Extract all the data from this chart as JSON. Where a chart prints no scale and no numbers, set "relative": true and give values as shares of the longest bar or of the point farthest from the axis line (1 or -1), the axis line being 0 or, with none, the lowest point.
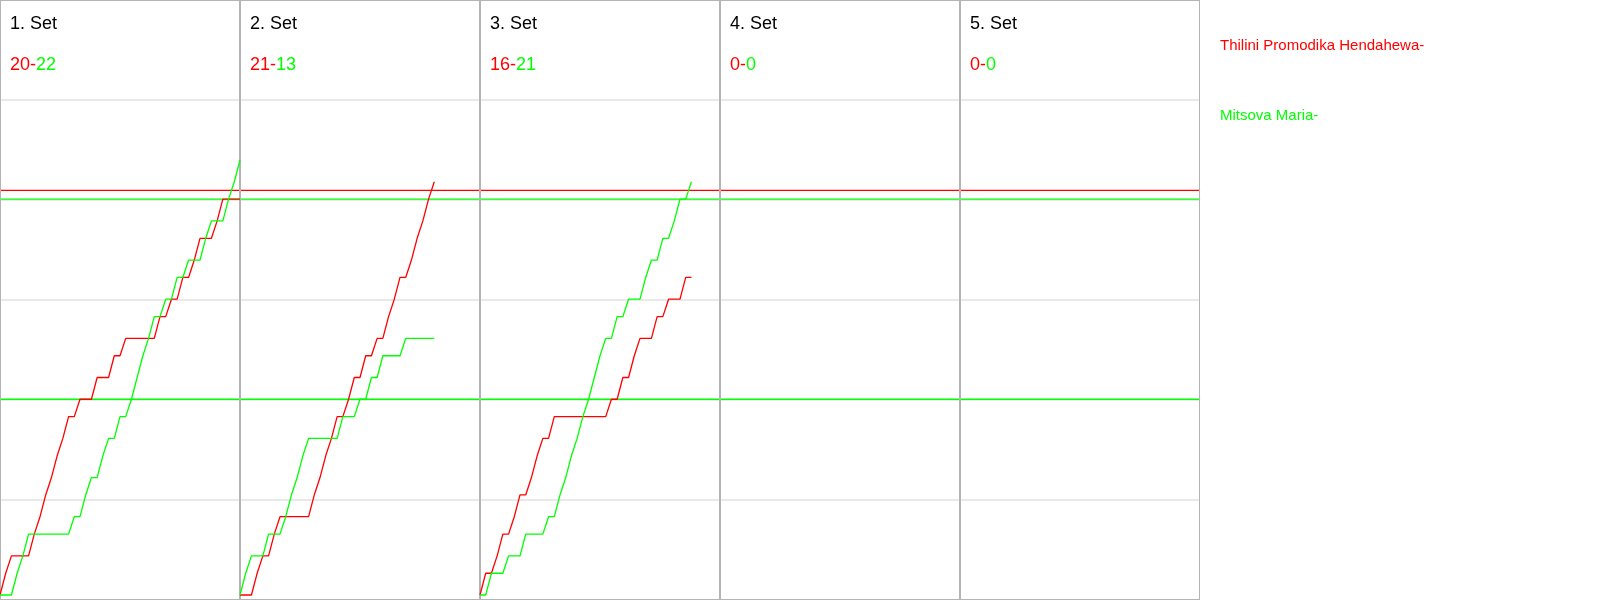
{
  "chart_data": {
    "type": "line",
    "relative": true,
    "grid": "y",
    "annotations": [
      "1. Set",
      "20-",
      "22",
      "2. Set",
      "21-",
      "13",
      "3. Set",
      "16-",
      "21",
      "4. Set",
      "0-",
      "0",
      "5. Set",
      "0-",
      "0"
    ],
    "categories": [
      null,
      null,
      null,
      null,
      null,
      null,
      null,
      null,
      null,
      null,
      null,
      null,
      null,
      null,
      null,
      null,
      null,
      null,
      null,
      null,
      null,
      null,
      null,
      null,
      null,
      null,
      null,
      null,
      null,
      null,
      null,
      null,
      null,
      null,
      null,
      null,
      null,
      null,
      null,
      null,
      null,
      null,
      null,
      null,
      null,
      null,
      null,
      null,
      null,
      null,
      null,
      null,
      null,
      null,
      null,
      null,
      null,
      null,
      null,
      null,
      null,
      null,
      null,
      null,
      null,
      null,
      null,
      null,
      null,
      null,
      null,
      null,
      null,
      null,
      null,
      null,
      null,
      null,
      null,
      null,
      null,
      null,
      null,
      null,
      null,
      null,
      null,
      null,
      null,
      null,
      null,
      null,
      null,
      null,
      null,
      null,
      null,
      null,
      null,
      null,
      null,
      null,
      null,
      null,
      null,
      null,
      null,
      null,
      null,
      null,
      null,
      null,
      null,
      null,
      null,
      null,
      null,
      null,
      null,
      null,
      null,
      null,
      null,
      null,
      null,
      null,
      null,
      null,
      null,
      null,
      null,
      null,
      null,
      null,
      null,
      null,
      null,
      null,
      null,
      null,
      null,
      null,
      null,
      null,
      null,
      null,
      null,
      null,
      null,
      null,
      null,
      null,
      null,
      null,
      null,
      null,
      null,
      null,
      null,
      null,
      null,
      null,
      null,
      null,
      null,
      null,
      null,
      null,
      null,
      null,
      null,
      null,
      null,
      null,
      null,
      null,
      null,
      null,
      null,
      null,
      null,
      null,
      null,
      null,
      null,
      null,
      null,
      null,
      null,
      null,
      null,
      null,
      null,
      null,
      null,
      null,
      null,
      null,
      null,
      null,
      null,
      null,
      null,
      null,
      null,
      null,
      null,
      null,
      null,
      null,
      null
    ],
    "ref_lines": [
      {
        "axis": "y",
        "value": 0.93,
        "color": "#ff0000"
      },
      {
        "axis": "y",
        "value": 0.91,
        "color": "#00ff00"
      },
      {
        "axis": "y",
        "value": 0.45,
        "color": "#00ff00"
      }
    ],
    "series": [
      {
        "name": "Thilini Promodika Hendahewa-",
        "color": "#ff0000",
        "values": [
          0,
          0.05,
          0.09,
          0.09,
          0.09,
          0.09,
          0.14,
          0.18,
          0.23,
          0.27,
          0.32,
          0.36,
          0.41,
          0.41,
          0.45,
          0.45,
          0.45,
          0.5,
          0.5,
          0.5,
          0.55,
          0.55,
          0.59,
          0.59,
          0.59,
          0.59,
          0.59,
          0.59,
          0.64,
          0.64,
          0.68,
          0.68,
          0.73,
          0.73,
          0.77,
          0.82,
          0.82,
          0.82,
          0.86,
          0.91,
          0.91,
          0.91,
          0.91,
          null,
          null,
          null,
          null,
          null,
          null,
          null,
          null,
          null,
          null,
          null,
          null,
          null,
          null,
          null,
          null,
          null,
          null,
          null,
          null,
          null,
          null,
          null,
          null,
          null,
          null,
          null,
          null,
          null,
          null,
          null,
          null,
          null,
          null,
          null,
          null,
          null,
          null,
          null,
          null,
          null,
          null,
          null,
          null,
          null,
          null,
          null,
          null,
          null,
          null,
          null,
          null,
          null,
          null,
          null,
          null,
          null,
          null,
          null,
          null,
          null,
          null,
          null,
          null,
          null,
          null,
          null,
          null,
          null,
          null,
          null,
          null,
          null,
          null,
          null,
          null,
          null,
          null,
          null,
          null,
          null,
          null,
          null,
          null,
          null,
          null,
          null,
          null,
          null,
          null,
          null,
          null,
          null,
          null,
          null,
          null,
          null,
          null,
          null,
          null,
          null,
          null,
          null,
          null,
          null,
          null,
          null,
          null,
          null,
          null,
          null,
          null,
          null,
          null,
          null,
          null,
          null,
          null,
          null,
          null,
          null,
          null,
          null,
          null,
          null,
          null,
          null,
          null,
          null,
          null,
          null,
          null,
          null,
          null,
          null,
          null,
          null,
          null,
          null,
          null,
          null,
          null,
          null,
          null,
          null,
          null,
          null,
          null,
          null,
          null,
          null,
          null,
          null,
          null,
          null,
          null,
          null,
          null,
          null,
          null,
          null,
          null,
          null,
          null,
          null,
          null,
          null,
          null
        ]
      },
      {
        "name": "Mitsova Maria-",
        "color": "#00ff00",
        "values": [
          0,
          0,
          0,
          0.05,
          0.09,
          0.14,
          0.14,
          0.14,
          0.14,
          0.14,
          0.14,
          0.14,
          0.14,
          0.18,
          0.18,
          0.23,
          0.27,
          0.27,
          0.32,
          0.36,
          0.36,
          0.41,
          0.41,
          0.45,
          0.5,
          0.55,
          0.59,
          0.64,
          0.64,
          0.68,
          0.68,
          0.73,
          0.73,
          0.77,
          0.77,
          0.77,
          0.82,
          0.86,
          0.86,
          0.86,
          0.91,
          0.95,
          1,
          null,
          null,
          null,
          null,
          null,
          null,
          null,
          null,
          null,
          null,
          null,
          null,
          null,
          null,
          null,
          null,
          null,
          null,
          null,
          null,
          null,
          null,
          null,
          null,
          null,
          null,
          null,
          null,
          null,
          null,
          null,
          null,
          null,
          null,
          null,
          null,
          null,
          null,
          null,
          null,
          null,
          null,
          null,
          null,
          null,
          null,
          null,
          null,
          null,
          null,
          null,
          null,
          null,
          null,
          null,
          null,
          null,
          null,
          null,
          null,
          null,
          null,
          null,
          null,
          null,
          null,
          null,
          null,
          null,
          null,
          null,
          null,
          null,
          null,
          null,
          null,
          null,
          null,
          null,
          null,
          null,
          null,
          null,
          null,
          null,
          null,
          null,
          null,
          null,
          null,
          null,
          null,
          null,
          null,
          null,
          null,
          null,
          null,
          null,
          null,
          null,
          null,
          null,
          null,
          null,
          null,
          null,
          null,
          null,
          null,
          null,
          null,
          null,
          null,
          null,
          null,
          null,
          null,
          null,
          null,
          null,
          null,
          null,
          null,
          null,
          null,
          null,
          null,
          null,
          null,
          null,
          null,
          null,
          null,
          null,
          null,
          null,
          null,
          null,
          null,
          null,
          null,
          null,
          null,
          null,
          null,
          null,
          null,
          null,
          null,
          null,
          null,
          null,
          null,
          null,
          null,
          null,
          null,
          null,
          null,
          null,
          null,
          null,
          null,
          null,
          null,
          null,
          null
        ]
      },
      {
        "color": "#ff0000",
        "values": [
          null,
          null,
          null,
          null,
          null,
          null,
          null,
          null,
          null,
          null,
          null,
          null,
          null,
          null,
          null,
          null,
          null,
          null,
          null,
          null,
          null,
          null,
          null,
          null,
          null,
          null,
          null,
          null,
          null,
          null,
          null,
          null,
          null,
          null,
          null,
          null,
          null,
          null,
          null,
          null,
          null,
          null,
          0,
          0,
          0,
          0.05,
          0.09,
          0.09,
          0.14,
          0.18,
          0.18,
          0.18,
          0.18,
          0.18,
          0.18,
          0.23,
          0.27,
          0.32,
          0.36,
          0.41,
          0.41,
          0.45,
          0.5,
          0.5,
          0.55,
          0.55,
          0.59,
          0.59,
          0.64,
          0.68,
          0.73,
          0.73,
          0.77,
          0.82,
          0.86,
          0.91,
          0.95,
          null,
          null,
          null,
          null,
          null,
          null,
          null,
          null,
          null,
          null,
          null,
          null,
          null,
          null,
          null,
          null,
          null,
          null,
          null,
          null,
          null,
          null,
          null,
          null,
          null,
          null,
          null,
          null,
          null,
          null,
          null,
          null,
          null,
          null,
          null,
          null,
          null,
          null,
          null,
          null,
          null,
          null,
          null,
          null,
          null,
          null,
          null,
          null,
          null,
          null,
          null,
          null,
          null,
          null,
          null,
          null,
          null,
          null,
          null,
          null,
          null,
          null,
          null,
          null,
          null,
          null,
          null,
          null,
          null,
          null,
          null,
          null,
          null,
          null,
          null,
          null,
          null,
          null,
          null,
          null,
          null,
          null,
          null,
          null,
          null,
          null,
          null,
          null,
          null,
          null,
          null,
          null,
          null,
          null,
          null,
          null,
          null,
          null,
          null,
          null,
          null,
          null,
          null,
          null,
          null,
          null,
          null,
          null,
          null,
          null,
          null,
          null,
          null,
          null,
          null,
          null,
          null,
          null,
          null,
          null,
          null,
          null,
          null,
          null,
          null,
          null,
          null,
          null,
          null,
          null,
          null,
          null,
          null,
          null
        ]
      },
      {
        "color": "#00ff00",
        "values": [
          null,
          null,
          null,
          null,
          null,
          null,
          null,
          null,
          null,
          null,
          null,
          null,
          null,
          null,
          null,
          null,
          null,
          null,
          null,
          null,
          null,
          null,
          null,
          null,
          null,
          null,
          null,
          null,
          null,
          null,
          null,
          null,
          null,
          null,
          null,
          null,
          null,
          null,
          null,
          null,
          null,
          null,
          0,
          0.05,
          0.09,
          0.09,
          0.09,
          0.14,
          0.14,
          0.14,
          0.18,
          0.23,
          0.27,
          0.32,
          0.36,
          0.36,
          0.36,
          0.36,
          0.36,
          0.36,
          0.41,
          0.41,
          0.41,
          0.45,
          0.45,
          0.5,
          0.5,
          0.55,
          0.55,
          0.55,
          0.55,
          0.59,
          0.59,
          0.59,
          0.59,
          0.59,
          0.59,
          null,
          null,
          null,
          null,
          null,
          null,
          null,
          null,
          null,
          null,
          null,
          null,
          null,
          null,
          null,
          null,
          null,
          null,
          null,
          null,
          null,
          null,
          null,
          null,
          null,
          null,
          null,
          null,
          null,
          null,
          null,
          null,
          null,
          null,
          null,
          null,
          null,
          null,
          null,
          null,
          null,
          null,
          null,
          null,
          null,
          null,
          null,
          null,
          null,
          null,
          null,
          null,
          null,
          null,
          null,
          null,
          null,
          null,
          null,
          null,
          null,
          null,
          null,
          null,
          null,
          null,
          null,
          null,
          null,
          null,
          null,
          null,
          null,
          null,
          null,
          null,
          null,
          null,
          null,
          null,
          null,
          null,
          null,
          null,
          null,
          null,
          null,
          null,
          null,
          null,
          null,
          null,
          null,
          null,
          null,
          null,
          null,
          null,
          null,
          null,
          null,
          null,
          null,
          null,
          null,
          null,
          null,
          null,
          null,
          null,
          null,
          null,
          null,
          null,
          null,
          null,
          null,
          null,
          null,
          null,
          null,
          null,
          null,
          null,
          null,
          null,
          null,
          null,
          null,
          null,
          null,
          null,
          null,
          null
        ]
      },
      {
        "color": "#ff0000",
        "values": [
          null,
          null,
          null,
          null,
          null,
          null,
          null,
          null,
          null,
          null,
          null,
          null,
          null,
          null,
          null,
          null,
          null,
          null,
          null,
          null,
          null,
          null,
          null,
          null,
          null,
          null,
          null,
          null,
          null,
          null,
          null,
          null,
          null,
          null,
          null,
          null,
          null,
          null,
          null,
          null,
          null,
          null,
          null,
          null,
          null,
          null,
          null,
          null,
          null,
          null,
          null,
          null,
          null,
          null,
          null,
          null,
          null,
          null,
          null,
          null,
          null,
          null,
          null,
          null,
          null,
          null,
          null,
          null,
          null,
          null,
          null,
          null,
          null,
          null,
          null,
          null,
          null,
          null,
          null,
          null,
          null,
          null,
          null,
          null,
          0,
          0.05,
          0.05,
          0.09,
          0.14,
          0.14,
          0.18,
          0.23,
          0.23,
          0.27,
          0.32,
          0.36,
          0.36,
          0.41,
          0.41,
          0.41,
          0.41,
          0.41,
          0.41,
          0.41,
          0.41,
          0.41,
          0.41,
          0.45,
          0.45,
          0.5,
          0.5,
          0.55,
          0.59,
          0.59,
          0.59,
          0.64,
          0.64,
          0.68,
          0.68,
          0.68,
          0.73,
          0.73,
          null,
          null,
          null,
          null,
          null,
          null,
          null,
          null,
          null,
          null,
          null,
          null,
          null,
          null,
          null,
          null,
          null,
          null,
          null,
          null,
          null,
          null,
          null,
          null,
          null,
          null,
          null,
          null,
          null,
          null,
          null,
          null,
          null,
          null,
          null,
          null,
          null,
          null,
          null,
          null,
          null,
          null,
          null,
          null,
          null,
          null,
          null,
          null,
          null,
          null,
          null,
          null,
          null,
          null,
          null,
          null,
          null,
          null,
          null,
          null,
          null,
          null,
          null,
          null,
          null,
          null,
          null,
          null,
          null,
          null,
          null,
          null,
          null,
          null,
          null,
          null,
          null,
          null,
          null,
          null,
          null,
          null,
          null,
          null,
          null,
          null,
          null,
          null,
          null
        ]
      },
      {
        "color": "#00ff00",
        "values": [
          null,
          null,
          null,
          null,
          null,
          null,
          null,
          null,
          null,
          null,
          null,
          null,
          null,
          null,
          null,
          null,
          null,
          null,
          null,
          null,
          null,
          null,
          null,
          null,
          null,
          null,
          null,
          null,
          null,
          null,
          null,
          null,
          null,
          null,
          null,
          null,
          null,
          null,
          null,
          null,
          null,
          null,
          null,
          null,
          null,
          null,
          null,
          null,
          null,
          null,
          null,
          null,
          null,
          null,
          null,
          null,
          null,
          null,
          null,
          null,
          null,
          null,
          null,
          null,
          null,
          null,
          null,
          null,
          null,
          null,
          null,
          null,
          null,
          null,
          null,
          null,
          null,
          null,
          null,
          null,
          null,
          null,
          null,
          null,
          0,
          0,
          0.05,
          0.05,
          0.05,
          0.09,
          0.09,
          0.09,
          0.14,
          0.14,
          0.14,
          0.14,
          0.18,
          0.18,
          0.23,
          0.27,
          0.32,
          0.36,
          0.41,
          0.45,
          0.5,
          0.55,
          0.59,
          0.59,
          0.64,
          0.64,
          0.68,
          0.68,
          0.68,
          0.73,
          0.77,
          0.77,
          0.82,
          0.82,
          0.86,
          0.91,
          0.91,
          0.95,
          null,
          null,
          null,
          null,
          null,
          null,
          null,
          null,
          null,
          null,
          null,
          null,
          null,
          null,
          null,
          null,
          null,
          null,
          null,
          null,
          null,
          null,
          null,
          null,
          null,
          null,
          null,
          null,
          null,
          null,
          null,
          null,
          null,
          null,
          null,
          null,
          null,
          null,
          null,
          null,
          null,
          null,
          null,
          null,
          null,
          null,
          null,
          null,
          null,
          null,
          null,
          null,
          null,
          null,
          null,
          null,
          null,
          null,
          null,
          null,
          null,
          null,
          null,
          null,
          null,
          null,
          null,
          null,
          null,
          null,
          null,
          null,
          null,
          null,
          null,
          null,
          null,
          null,
          null,
          null,
          null,
          null,
          null,
          null,
          null,
          null,
          null,
          null,
          null
        ]
      }
    ]
  }
}
